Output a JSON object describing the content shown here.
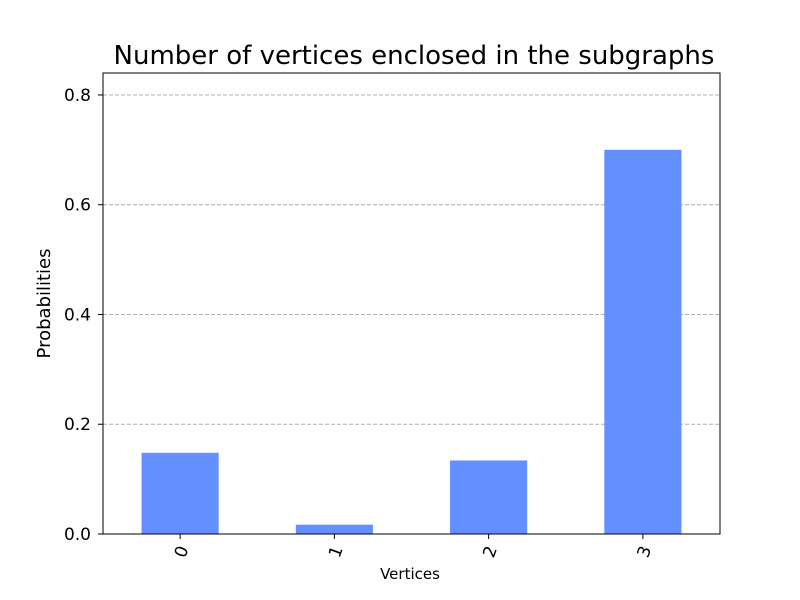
{
  "chart_data": {
    "type": "bar",
    "title": "Number of vertices enclosed in the subgraphs",
    "xlabel": "Vertices",
    "ylabel": "Probabilities",
    "categories": [
      "0",
      "1",
      "2",
      "3"
    ],
    "values": [
      0.148,
      0.017,
      0.134,
      0.7
    ],
    "ylim": [
      0,
      0.84
    ],
    "yticks": [
      0.0,
      0.2,
      0.4,
      0.6,
      0.8
    ],
    "ytick_labels": [
      "0.0",
      "0.2",
      "0.4",
      "0.6",
      "0.8"
    ],
    "grid": "y-dashed",
    "bar_color": "#648fff",
    "xtick_rotation": "70 degrees"
  }
}
